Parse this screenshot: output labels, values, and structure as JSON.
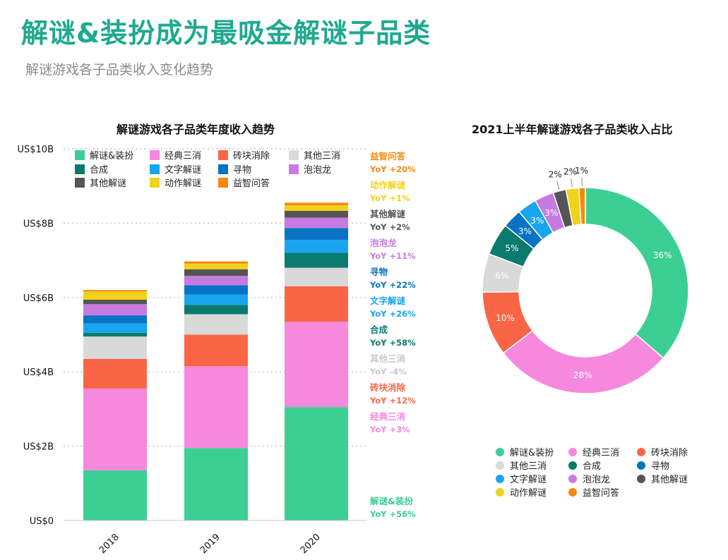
{
  "header": {
    "title": "解谜&装扮成为最吸金解谜子品类",
    "subtitle": "解谜游戏各子品类收入变化趋势"
  },
  "colors": {
    "解谜&装扮": "#3ccf94",
    "经典三消": "#f688de",
    "砖块消除": "#fa6645",
    "其他三消": "#d9d9d9",
    "合成": "#0a7a6e",
    "文字解谜": "#17a5ee",
    "寻物": "#0873c4",
    "泡泡龙": "#c77be0",
    "其他解谜": "#555555",
    "动作解谜": "#f1d21b",
    "益智问答": "#f58a0c"
  },
  "chart_data": [
    {
      "type": "bar",
      "stacked": true,
      "title": "解谜游戏各子品类年度收入趋势",
      "categories": [
        "2018",
        "2019",
        "2020"
      ],
      "y_ticks": [
        "US$0",
        "US$2B",
        "US$4B",
        "US$6B",
        "US$8B",
        "US$10B"
      ],
      "ylim": [
        0,
        10
      ],
      "grid": true,
      "legend_position": "top-left",
      "series": [
        {
          "name": "解谜&装扮",
          "values": [
            1.35,
            1.95,
            3.05
          ]
        },
        {
          "name": "经典三消",
          "values": [
            2.2,
            2.2,
            2.3
          ]
        },
        {
          "name": "砖块消除",
          "values": [
            0.8,
            0.85,
            0.95
          ]
        },
        {
          "name": "其他三消",
          "values": [
            0.6,
            0.55,
            0.5
          ]
        },
        {
          "name": "合成",
          "values": [
            0.1,
            0.25,
            0.4
          ]
        },
        {
          "name": "文字解谜",
          "values": [
            0.25,
            0.28,
            0.35
          ]
        },
        {
          "name": "寻物",
          "values": [
            0.22,
            0.25,
            0.32
          ]
        },
        {
          "name": "泡泡龙",
          "values": [
            0.3,
            0.25,
            0.28
          ]
        },
        {
          "name": "其他解谜",
          "values": [
            0.12,
            0.18,
            0.18
          ]
        },
        {
          "name": "动作解谜",
          "values": [
            0.22,
            0.15,
            0.15
          ]
        },
        {
          "name": "益智问答",
          "values": [
            0.04,
            0.06,
            0.07
          ]
        }
      ],
      "annotations": [
        {
          "name": "益智问答",
          "yoy": "YoY +20%"
        },
        {
          "name": "动作解谜",
          "yoy": "YoY +1%"
        },
        {
          "name": "其他解谜",
          "yoy": "YoY +2%"
        },
        {
          "name": "泡泡龙",
          "yoy": "YoY +11%"
        },
        {
          "name": "寻物",
          "yoy": "YoY +22%"
        },
        {
          "name": "文字解谜",
          "yoy": "YoY +26%"
        },
        {
          "name": "合成",
          "yoy": "YoY +58%"
        },
        {
          "name": "其他三消",
          "yoy": "YoY -4%"
        },
        {
          "name": "砖块消除",
          "yoy": "YoY +12%"
        },
        {
          "name": "经典三消",
          "yoy": "YoY +3%"
        },
        {
          "name": "解谜&装扮",
          "yoy": "YoY +56%"
        }
      ]
    },
    {
      "type": "pie",
      "donut": true,
      "title": "2021上半年解谜游戏各子品类收入占比",
      "legend_position": "bottom",
      "slices": [
        {
          "name": "解谜&装扮",
          "value": 36,
          "label": "36%"
        },
        {
          "name": "经典三消",
          "value": 28,
          "label": "28%"
        },
        {
          "name": "砖块消除",
          "value": 10,
          "label": "10%"
        },
        {
          "name": "其他三消",
          "value": 6,
          "label": "6%"
        },
        {
          "name": "合成",
          "value": 5,
          "label": "5%"
        },
        {
          "name": "寻物",
          "value": 3,
          "label": "3%"
        },
        {
          "name": "文字解谜",
          "value": 3,
          "label": "3%"
        },
        {
          "name": "泡泡龙",
          "value": 3,
          "label": "3%"
        },
        {
          "name": "其他解谜",
          "value": 2,
          "label": "2%"
        },
        {
          "name": "动作解谜",
          "value": 2,
          "label": "2%"
        },
        {
          "name": "益智问答",
          "value": 1,
          "label": "1%"
        }
      ],
      "legend_order": [
        "解谜&装扮",
        "经典三消",
        "砖块消除",
        "其他三消",
        "合成",
        "寻物",
        "文字解谜",
        "泡泡龙",
        "其他解谜",
        "动作解谜",
        "益智问答"
      ]
    }
  ]
}
